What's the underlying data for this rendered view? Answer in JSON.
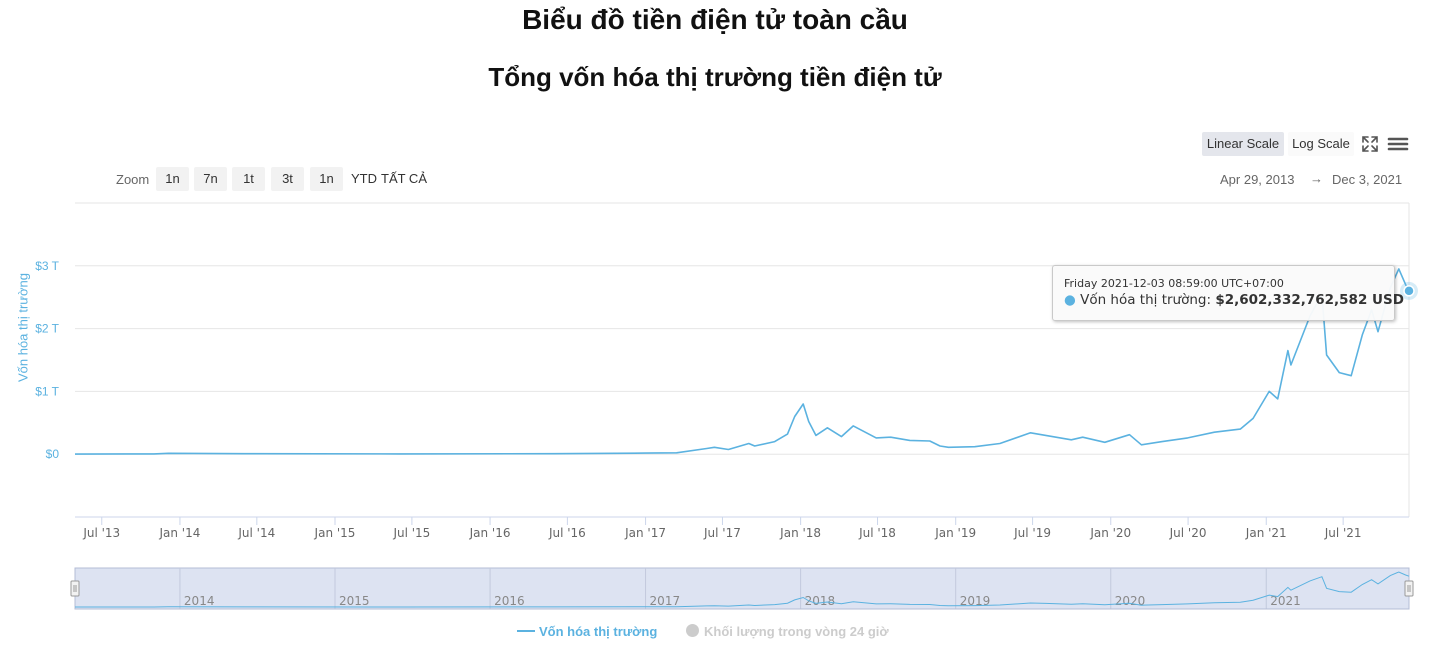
{
  "page": {
    "title": "Biểu đồ tiền điện tử toàn cầu"
  },
  "toolbar": {
    "zoom_label": "Zoom",
    "zoom_buttons": [
      "1n",
      "7n",
      "1t",
      "3t",
      "1n",
      "YTD",
      "TẤT CẢ"
    ],
    "active_zoom": "TẤT CẢ",
    "scale_buttons": [
      "Linear Scale",
      "Log Scale"
    ],
    "active_scale": "Linear Scale",
    "range_from": "Apr 29, 2013",
    "range_arrow": "→",
    "range_to": "Dec 3, 2021"
  },
  "tooltip": {
    "date": "Friday 2021-12-03 08:59:00 UTC+07:00",
    "series_label": "Vốn hóa thị trường: ",
    "value": "$2,602,332,762,582 USD"
  },
  "legend": {
    "items": [
      "Vốn hóa thị trường",
      "Khối lượng trong vòng 24 giờ"
    ]
  },
  "colors": {
    "series": "#5bb2e0",
    "navigator_fill": "#dde3f2",
    "legend_inactive": "#cccccc"
  },
  "chart_data": {
    "type": "line",
    "title": "Tổng vốn hóa thị trường tiền điện tử",
    "ylabel": "Vốn hóa thị trường",
    "y_unit": "USD (trillions)",
    "ylim": [
      -1.0,
      4.0
    ],
    "yticks": [
      0,
      1,
      2,
      3
    ],
    "ytick_labels": [
      "$0",
      "$1 T",
      "$2 T",
      "$3 T"
    ],
    "xlim": [
      "2013-04-29",
      "2021-12-03"
    ],
    "xtick_labels": [
      "Jul '13",
      "Jan '14",
      "Jul '14",
      "Jan '15",
      "Jul '15",
      "Jan '16",
      "Jul '16",
      "Jan '17",
      "Jul '17",
      "Jan '18",
      "Jul '18",
      "Jan '19",
      "Jul '19",
      "Jan '20",
      "Jul '20",
      "Jan '21",
      "Jul '21"
    ],
    "xtick_dates": [
      "2013-07-01",
      "2014-01-01",
      "2014-07-01",
      "2015-01-01",
      "2015-07-01",
      "2016-01-01",
      "2016-07-01",
      "2017-01-01",
      "2017-07-01",
      "2018-01-01",
      "2018-07-01",
      "2019-01-01",
      "2019-07-01",
      "2020-01-01",
      "2020-07-01",
      "2021-01-01",
      "2021-07-01"
    ],
    "navigator_labels": [
      "2014",
      "2015",
      "2016",
      "2017",
      "2018",
      "2019",
      "2020",
      "2021"
    ],
    "navigator_dates": [
      "2014-01-01",
      "2015-01-01",
      "2016-01-01",
      "2017-01-01",
      "2018-01-01",
      "2019-01-01",
      "2020-01-01",
      "2021-01-01"
    ],
    "grid": true,
    "legend_position": "bottom",
    "series": [
      {
        "name": "Vốn hóa thị trường",
        "x": [
          "2013-04-29",
          "2013-11-01",
          "2013-12-05",
          "2014-06-01",
          "2015-06-01",
          "2016-06-01",
          "2016-12-31",
          "2017-03-15",
          "2017-05-25",
          "2017-06-12",
          "2017-07-15",
          "2017-09-01",
          "2017-09-15",
          "2017-11-01",
          "2017-12-01",
          "2017-12-18",
          "2018-01-07",
          "2018-01-20",
          "2018-02-06",
          "2018-03-05",
          "2018-04-07",
          "2018-05-05",
          "2018-06-28",
          "2018-08-01",
          "2018-09-15",
          "2018-11-01",
          "2018-11-25",
          "2018-12-15",
          "2019-02-15",
          "2019-04-15",
          "2019-06-26",
          "2019-08-01",
          "2019-09-30",
          "2019-10-27",
          "2019-12-18",
          "2020-02-14",
          "2020-03-13",
          "2020-05-01",
          "2020-06-30",
          "2020-09-01",
          "2020-11-01",
          "2020-12-01",
          "2021-01-08",
          "2021-01-28",
          "2021-02-21",
          "2021-02-28",
          "2021-04-14",
          "2021-05-12",
          "2021-05-23",
          "2021-06-22",
          "2021-07-20",
          "2021-08-15",
          "2021-09-06",
          "2021-09-21",
          "2021-10-20",
          "2021-11-09",
          "2021-11-25",
          "2021-12-03"
        ],
        "values": [
          0.0015,
          0.004,
          0.015,
          0.008,
          0.004,
          0.008,
          0.017,
          0.022,
          0.09,
          0.11,
          0.075,
          0.17,
          0.13,
          0.2,
          0.32,
          0.6,
          0.8,
          0.52,
          0.3,
          0.42,
          0.28,
          0.45,
          0.26,
          0.27,
          0.22,
          0.21,
          0.13,
          0.11,
          0.12,
          0.17,
          0.34,
          0.3,
          0.23,
          0.27,
          0.19,
          0.31,
          0.15,
          0.2,
          0.26,
          0.35,
          0.4,
          0.57,
          1.0,
          0.88,
          1.65,
          1.42,
          2.2,
          2.55,
          1.58,
          1.3,
          1.25,
          1.9,
          2.3,
          1.95,
          2.65,
          2.95,
          2.7,
          2.6
        ]
      },
      {
        "name": "Khối lượng trong vòng 24 giờ",
        "visible": false
      }
    ]
  }
}
